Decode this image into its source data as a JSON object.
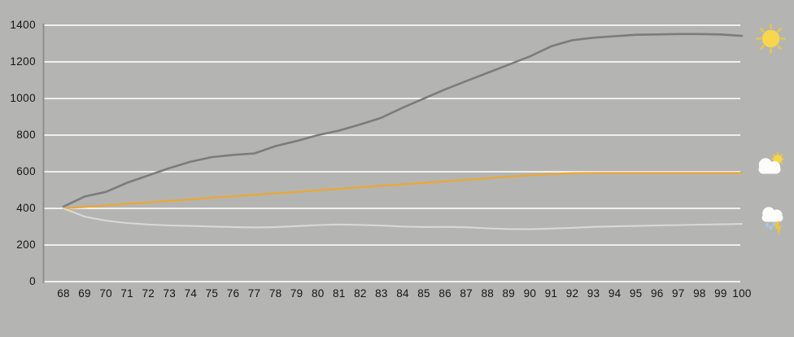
{
  "chart": {
    "background": "#b4b5b2",
    "gridline_color": "#eff0ec",
    "axis_color": "#8d8e90",
    "label_color": "#151515"
  },
  "chart_data": {
    "type": "line",
    "title": "",
    "xlabel": "",
    "ylabel": "",
    "x": [
      68,
      69,
      70,
      71,
      72,
      73,
      74,
      75,
      76,
      77,
      78,
      79,
      80,
      81,
      82,
      83,
      84,
      85,
      86,
      87,
      88,
      89,
      90,
      91,
      92,
      93,
      94,
      95,
      96,
      97,
      98,
      99,
      100
    ],
    "xlim": [
      68,
      100
    ],
    "ylim": [
      0,
      1400
    ],
    "yticks": [
      1400,
      1200,
      1000,
      800,
      600,
      400,
      200,
      0
    ],
    "grid": true,
    "legend_position": "right-icons",
    "series": [
      {
        "name": "sunny",
        "legend_icon": "sun-icon",
        "color": "#7c7d7b",
        "width": 2.6,
        "values": [
          410,
          465,
          490,
          540,
          580,
          620,
          655,
          680,
          692,
          700,
          740,
          768,
          800,
          825,
          858,
          895,
          950,
          1000,
          1050,
          1095,
          1140,
          1185,
          1230,
          1285,
          1318,
          1332,
          1340,
          1348,
          1350,
          1352,
          1352,
          1350,
          1342
        ]
      },
      {
        "name": "partly-cloudy",
        "legend_icon": "sun-behind-cloud-icon",
        "color": "#e9a73c",
        "width": 2.4,
        "values": [
          400,
          408,
          416,
          425,
          433,
          441,
          449,
          458,
          466,
          474,
          482,
          490,
          499,
          507,
          515,
          523,
          532,
          540,
          548,
          556,
          564,
          573,
          581,
          588,
          592,
          593,
          593,
          593,
          593,
          593,
          593,
          593,
          593
        ]
      },
      {
        "name": "stormy",
        "legend_icon": "storm-rain-lightning-icon",
        "color": "#d8d9d5",
        "width": 2.1,
        "values": [
          400,
          355,
          333,
          320,
          312,
          307,
          304,
          301,
          298,
          296,
          298,
          303,
          309,
          312,
          310,
          306,
          301,
          298,
          299,
          297,
          291,
          287,
          286,
          290,
          294,
          299,
          302,
          304,
          307,
          309,
          311,
          313,
          315
        ]
      }
    ]
  },
  "icons": {
    "sun": {
      "name": "sun-icon",
      "disc_color": "#f7d74e",
      "ray_color": "#ecc83e"
    },
    "partly_cloudy": {
      "name": "sun-behind-cloud-icon",
      "cloud_color": "#fcfcfa",
      "sun_color": "#f6d44c"
    },
    "storm": {
      "name": "storm-rain-lightning-icon",
      "cloud_color": "#fcfcfa",
      "rain_color": "#a9c6e2",
      "bolt_color": "#f1c536"
    }
  }
}
